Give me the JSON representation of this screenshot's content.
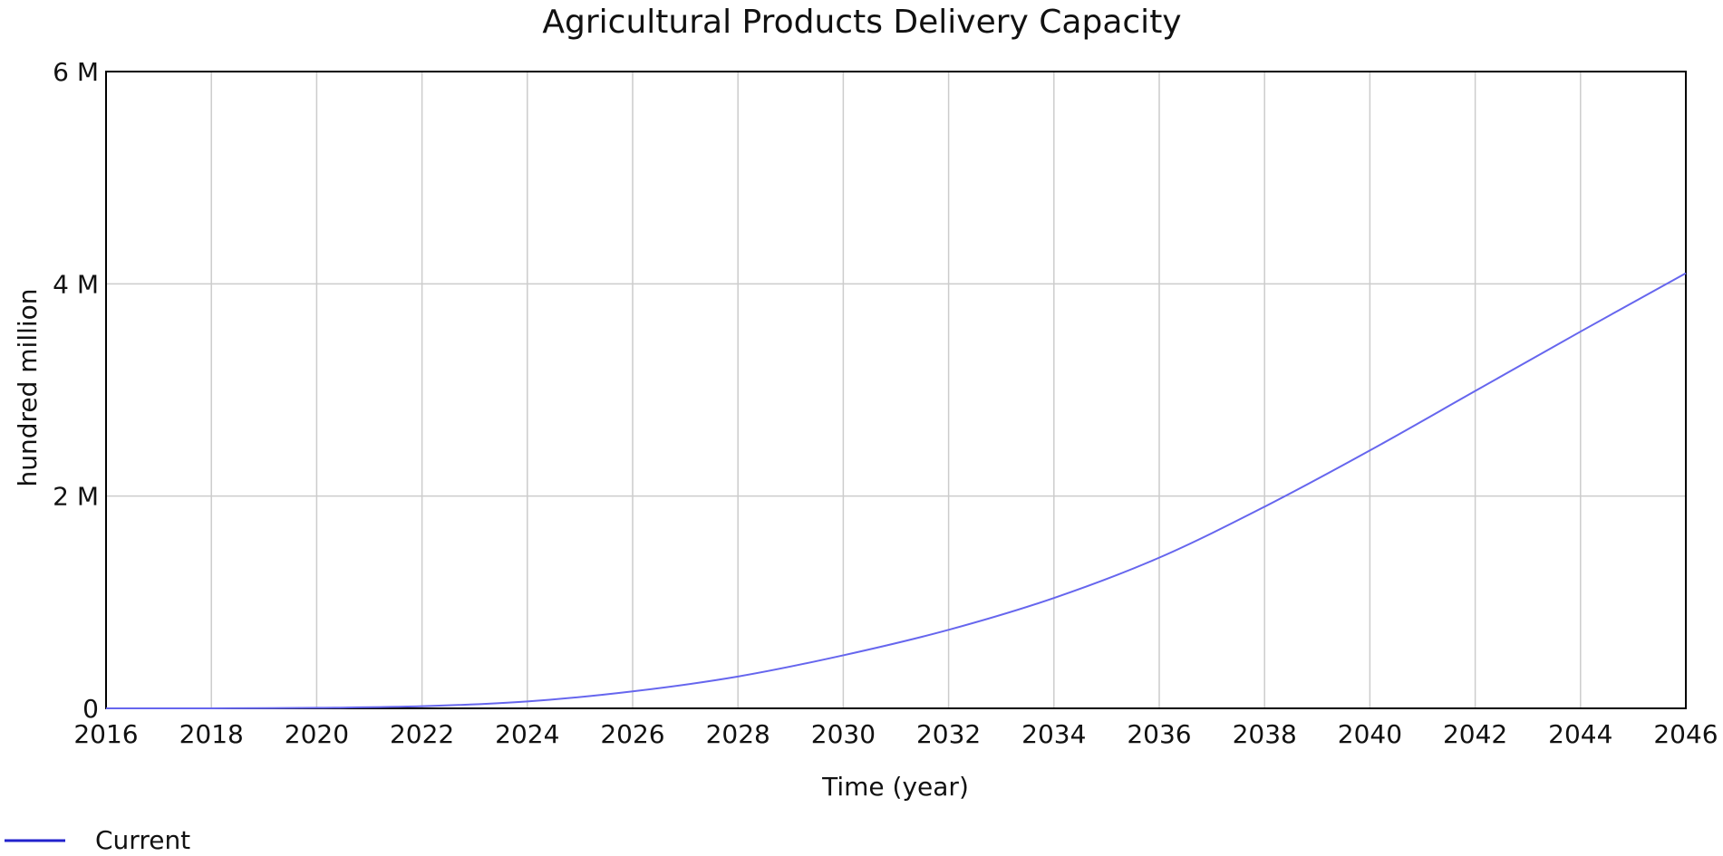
{
  "chart_data": {
    "type": "line",
    "title": "Agricultural Products Delivery Capacity",
    "xlabel": "Time (year)",
    "ylabel": "hundred million",
    "xlim": [
      2016,
      2046
    ],
    "ylim": [
      0,
      6000000
    ],
    "x_ticks": [
      2016,
      2018,
      2020,
      2022,
      2024,
      2026,
      2028,
      2030,
      2032,
      2034,
      2036,
      2038,
      2040,
      2042,
      2044,
      2046
    ],
    "x_tick_labels": [
      "2016",
      "2018",
      "2020",
      "2022",
      "2024",
      "2026",
      "2028",
      "2030",
      "2032",
      "2034",
      "2036",
      "2038",
      "2040",
      "2042",
      "2044",
      "2046"
    ],
    "y_ticks": [
      0,
      2000000,
      4000000,
      6000000
    ],
    "y_tick_labels": [
      "0",
      "2 M",
      "4 M",
      "6 M"
    ],
    "grid": true,
    "legend_position": "bottom-left",
    "series": [
      {
        "name": "Current",
        "color": "#6666ee",
        "legend_color": "#2222cc",
        "x": [
          2016,
          2018,
          2020,
          2022,
          2024,
          2026,
          2028,
          2030,
          2032,
          2034,
          2036,
          2038,
          2040,
          2042,
          2044,
          2046
        ],
        "values": [
          0,
          0,
          5000,
          20000,
          65000,
          160000,
          300000,
          500000,
          740000,
          1040000,
          1420000,
          1900000,
          2430000,
          2990000,
          3550000,
          4100000
        ]
      }
    ]
  }
}
